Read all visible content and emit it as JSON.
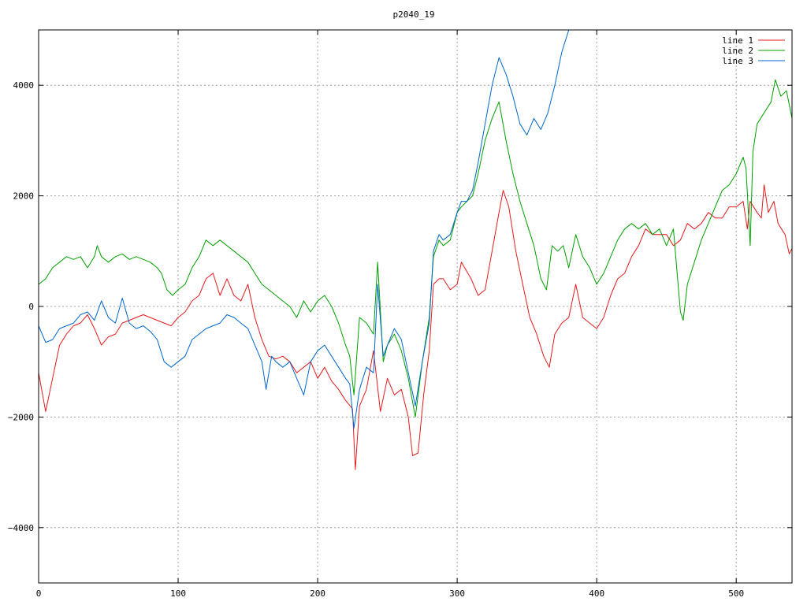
{
  "chart_data": {
    "type": "line",
    "title": "p2040_19",
    "xlabel": "",
    "ylabel": "",
    "xlim": [
      0,
      540
    ],
    "ylim": [
      -5000,
      5000
    ],
    "xticks": [
      0,
      100,
      200,
      300,
      400,
      500
    ],
    "yticks": [
      -4000,
      -2000,
      0,
      2000,
      4000
    ],
    "ytick_labels": [
      "−4000",
      "−2000",
      "0",
      "2000",
      "4000"
    ],
    "grid": true,
    "legend_position": "top-right",
    "series": [
      {
        "name": "line 1",
        "color": "#e41a1c",
        "points": [
          [
            0,
            -1200
          ],
          [
            5,
            -1900
          ],
          [
            10,
            -1300
          ],
          [
            15,
            -700
          ],
          [
            20,
            -500
          ],
          [
            25,
            -350
          ],
          [
            30,
            -300
          ],
          [
            35,
            -150
          ],
          [
            40,
            -400
          ],
          [
            45,
            -700
          ],
          [
            50,
            -550
          ],
          [
            55,
            -500
          ],
          [
            60,
            -300
          ],
          [
            65,
            -250
          ],
          [
            70,
            -200
          ],
          [
            75,
            -150
          ],
          [
            80,
            -200
          ],
          [
            85,
            -250
          ],
          [
            90,
            -300
          ],
          [
            95,
            -350
          ],
          [
            100,
            -200
          ],
          [
            105,
            -100
          ],
          [
            110,
            100
          ],
          [
            115,
            200
          ],
          [
            120,
            500
          ],
          [
            125,
            600
          ],
          [
            130,
            200
          ],
          [
            135,
            500
          ],
          [
            140,
            200
          ],
          [
            145,
            100
          ],
          [
            150,
            400
          ],
          [
            155,
            -200
          ],
          [
            160,
            -600
          ],
          [
            165,
            -900
          ],
          [
            170,
            -950
          ],
          [
            175,
            -900
          ],
          [
            180,
            -1000
          ],
          [
            185,
            -1200
          ],
          [
            190,
            -1100
          ],
          [
            195,
            -1000
          ],
          [
            200,
            -1300
          ],
          [
            205,
            -1100
          ],
          [
            210,
            -1350
          ],
          [
            215,
            -1500
          ],
          [
            220,
            -1700
          ],
          [
            225,
            -1850
          ],
          [
            227,
            -2950
          ],
          [
            230,
            -1800
          ],
          [
            235,
            -1500
          ],
          [
            240,
            -800
          ],
          [
            245,
            -1900
          ],
          [
            250,
            -1300
          ],
          [
            255,
            -1600
          ],
          [
            260,
            -1500
          ],
          [
            265,
            -2000
          ],
          [
            268,
            -2700
          ],
          [
            272,
            -2650
          ],
          [
            276,
            -1600
          ],
          [
            280,
            -800
          ],
          [
            283,
            400
          ],
          [
            287,
            500
          ],
          [
            290,
            500
          ],
          [
            295,
            300
          ],
          [
            300,
            400
          ],
          [
            303,
            800
          ],
          [
            310,
            500
          ],
          [
            315,
            200
          ],
          [
            320,
            300
          ],
          [
            325,
            1000
          ],
          [
            330,
            1700
          ],
          [
            333,
            2100
          ],
          [
            337,
            1800
          ],
          [
            342,
            1000
          ],
          [
            347,
            400
          ],
          [
            352,
            -200
          ],
          [
            357,
            -500
          ],
          [
            362,
            -900
          ],
          [
            366,
            -1100
          ],
          [
            370,
            -500
          ],
          [
            375,
            -300
          ],
          [
            380,
            -200
          ],
          [
            385,
            400
          ],
          [
            390,
            -200
          ],
          [
            395,
            -300
          ],
          [
            400,
            -400
          ],
          [
            405,
            -200
          ],
          [
            410,
            200
          ],
          [
            415,
            500
          ],
          [
            420,
            600
          ],
          [
            425,
            900
          ],
          [
            430,
            1100
          ],
          [
            435,
            1400
          ],
          [
            440,
            1300
          ],
          [
            445,
            1300
          ],
          [
            450,
            1300
          ],
          [
            455,
            1100
          ],
          [
            460,
            1200
          ],
          [
            465,
            1500
          ],
          [
            470,
            1400
          ],
          [
            475,
            1500
          ],
          [
            480,
            1700
          ],
          [
            485,
            1600
          ],
          [
            490,
            1600
          ],
          [
            495,
            1800
          ],
          [
            500,
            1800
          ],
          [
            505,
            1900
          ],
          [
            508,
            1400
          ],
          [
            510,
            1900
          ],
          [
            515,
            1700
          ],
          [
            518,
            1600
          ],
          [
            520,
            2200
          ],
          [
            523,
            1700
          ],
          [
            527,
            1900
          ],
          [
            530,
            1500
          ],
          [
            535,
            1300
          ],
          [
            538,
            950
          ],
          [
            540,
            1050
          ]
        ]
      },
      {
        "name": "line 2",
        "color": "#00a000",
        "points": [
          [
            0,
            400
          ],
          [
            5,
            500
          ],
          [
            10,
            700
          ],
          [
            15,
            800
          ],
          [
            20,
            900
          ],
          [
            25,
            850
          ],
          [
            30,
            900
          ],
          [
            35,
            700
          ],
          [
            40,
            900
          ],
          [
            42,
            1100
          ],
          [
            45,
            900
          ],
          [
            50,
            800
          ],
          [
            55,
            900
          ],
          [
            60,
            950
          ],
          [
            65,
            850
          ],
          [
            70,
            900
          ],
          [
            75,
            850
          ],
          [
            80,
            800
          ],
          [
            85,
            700
          ],
          [
            88,
            600
          ],
          [
            92,
            300
          ],
          [
            96,
            200
          ],
          [
            100,
            300
          ],
          [
            105,
            400
          ],
          [
            110,
            700
          ],
          [
            115,
            900
          ],
          [
            120,
            1200
          ],
          [
            125,
            1100
          ],
          [
            130,
            1200
          ],
          [
            135,
            1100
          ],
          [
            140,
            1000
          ],
          [
            145,
            900
          ],
          [
            150,
            800
          ],
          [
            155,
            600
          ],
          [
            160,
            400
          ],
          [
            165,
            300
          ],
          [
            170,
            200
          ],
          [
            175,
            100
          ],
          [
            180,
            0
          ],
          [
            185,
            -200
          ],
          [
            190,
            100
          ],
          [
            195,
            -100
          ],
          [
            200,
            100
          ],
          [
            205,
            200
          ],
          [
            210,
            0
          ],
          [
            215,
            -300
          ],
          [
            220,
            -700
          ],
          [
            223,
            -900
          ],
          [
            226,
            -1600
          ],
          [
            230,
            -200
          ],
          [
            235,
            -300
          ],
          [
            240,
            -500
          ],
          [
            243,
            800
          ],
          [
            247,
            -1000
          ],
          [
            250,
            -700
          ],
          [
            255,
            -500
          ],
          [
            260,
            -800
          ],
          [
            265,
            -1300
          ],
          [
            270,
            -2000
          ],
          [
            275,
            -1000
          ],
          [
            280,
            -200
          ],
          [
            283,
            900
          ],
          [
            287,
            1200
          ],
          [
            290,
            1100
          ],
          [
            295,
            1200
          ],
          [
            300,
            1700
          ],
          [
            303,
            1800
          ],
          [
            307,
            1900
          ],
          [
            311,
            2000
          ],
          [
            315,
            2400
          ],
          [
            320,
            3000
          ],
          [
            325,
            3400
          ],
          [
            330,
            3700
          ],
          [
            335,
            3000
          ],
          [
            340,
            2400
          ],
          [
            345,
            1900
          ],
          [
            350,
            1500
          ],
          [
            355,
            1100
          ],
          [
            360,
            500
          ],
          [
            364,
            300
          ],
          [
            368,
            1100
          ],
          [
            372,
            1000
          ],
          [
            376,
            1100
          ],
          [
            380,
            700
          ],
          [
            385,
            1300
          ],
          [
            390,
            900
          ],
          [
            395,
            700
          ],
          [
            400,
            400
          ],
          [
            405,
            600
          ],
          [
            410,
            900
          ],
          [
            415,
            1200
          ],
          [
            420,
            1400
          ],
          [
            425,
            1500
          ],
          [
            430,
            1400
          ],
          [
            435,
            1500
          ],
          [
            440,
            1300
          ],
          [
            445,
            1400
          ],
          [
            450,
            1100
          ],
          [
            455,
            1400
          ],
          [
            460,
            -100
          ],
          [
            462,
            -250
          ],
          [
            465,
            400
          ],
          [
            470,
            800
          ],
          [
            475,
            1200
          ],
          [
            480,
            1500
          ],
          [
            485,
            1800
          ],
          [
            490,
            2100
          ],
          [
            495,
            2200
          ],
          [
            500,
            2400
          ],
          [
            505,
            2700
          ],
          [
            507,
            2500
          ],
          [
            510,
            1100
          ],
          [
            512,
            2800
          ],
          [
            515,
            3300
          ],
          [
            520,
            3500
          ],
          [
            525,
            3700
          ],
          [
            528,
            4100
          ],
          [
            532,
            3800
          ],
          [
            536,
            3900
          ],
          [
            540,
            3400
          ]
        ]
      },
      {
        "name": "line 3",
        "color": "#0066cc",
        "points": [
          [
            0,
            -350
          ],
          [
            5,
            -650
          ],
          [
            10,
            -600
          ],
          [
            15,
            -400
          ],
          [
            20,
            -350
          ],
          [
            25,
            -300
          ],
          [
            30,
            -150
          ],
          [
            35,
            -100
          ],
          [
            40,
            -250
          ],
          [
            45,
            100
          ],
          [
            50,
            -200
          ],
          [
            55,
            -300
          ],
          [
            60,
            150
          ],
          [
            65,
            -300
          ],
          [
            70,
            -400
          ],
          [
            75,
            -350
          ],
          [
            80,
            -450
          ],
          [
            85,
            -600
          ],
          [
            90,
            -1000
          ],
          [
            95,
            -1100
          ],
          [
            100,
            -1000
          ],
          [
            105,
            -900
          ],
          [
            110,
            -600
          ],
          [
            115,
            -500
          ],
          [
            120,
            -400
          ],
          [
            125,
            -350
          ],
          [
            130,
            -300
          ],
          [
            135,
            -150
          ],
          [
            140,
            -200
          ],
          [
            145,
            -300
          ],
          [
            150,
            -400
          ],
          [
            155,
            -700
          ],
          [
            160,
            -1000
          ],
          [
            163,
            -1500
          ],
          [
            167,
            -900
          ],
          [
            170,
            -1000
          ],
          [
            175,
            -1100
          ],
          [
            180,
            -1000
          ],
          [
            185,
            -1300
          ],
          [
            190,
            -1600
          ],
          [
            195,
            -1000
          ],
          [
            200,
            -800
          ],
          [
            205,
            -700
          ],
          [
            210,
            -900
          ],
          [
            215,
            -1100
          ],
          [
            220,
            -1300
          ],
          [
            223,
            -1400
          ],
          [
            226,
            -2200
          ],
          [
            230,
            -1500
          ],
          [
            235,
            -1100
          ],
          [
            240,
            -1200
          ],
          [
            243,
            400
          ],
          [
            247,
            -900
          ],
          [
            250,
            -700
          ],
          [
            255,
            -400
          ],
          [
            260,
            -600
          ],
          [
            265,
            -1200
          ],
          [
            270,
            -1800
          ],
          [
            275,
            -1000
          ],
          [
            280,
            -300
          ],
          [
            283,
            1000
          ],
          [
            287,
            1300
          ],
          [
            290,
            1200
          ],
          [
            295,
            1300
          ],
          [
            300,
            1700
          ],
          [
            303,
            1900
          ],
          [
            307,
            1900
          ],
          [
            311,
            2100
          ],
          [
            315,
            2600
          ],
          [
            320,
            3300
          ],
          [
            325,
            4000
          ],
          [
            330,
            4500
          ],
          [
            335,
            4200
          ],
          [
            340,
            3800
          ],
          [
            345,
            3300
          ],
          [
            350,
            3100
          ],
          [
            355,
            3400
          ],
          [
            360,
            3200
          ],
          [
            365,
            3500
          ],
          [
            370,
            4000
          ],
          [
            375,
            4600
          ],
          [
            380,
            5000
          ]
        ]
      }
    ]
  }
}
